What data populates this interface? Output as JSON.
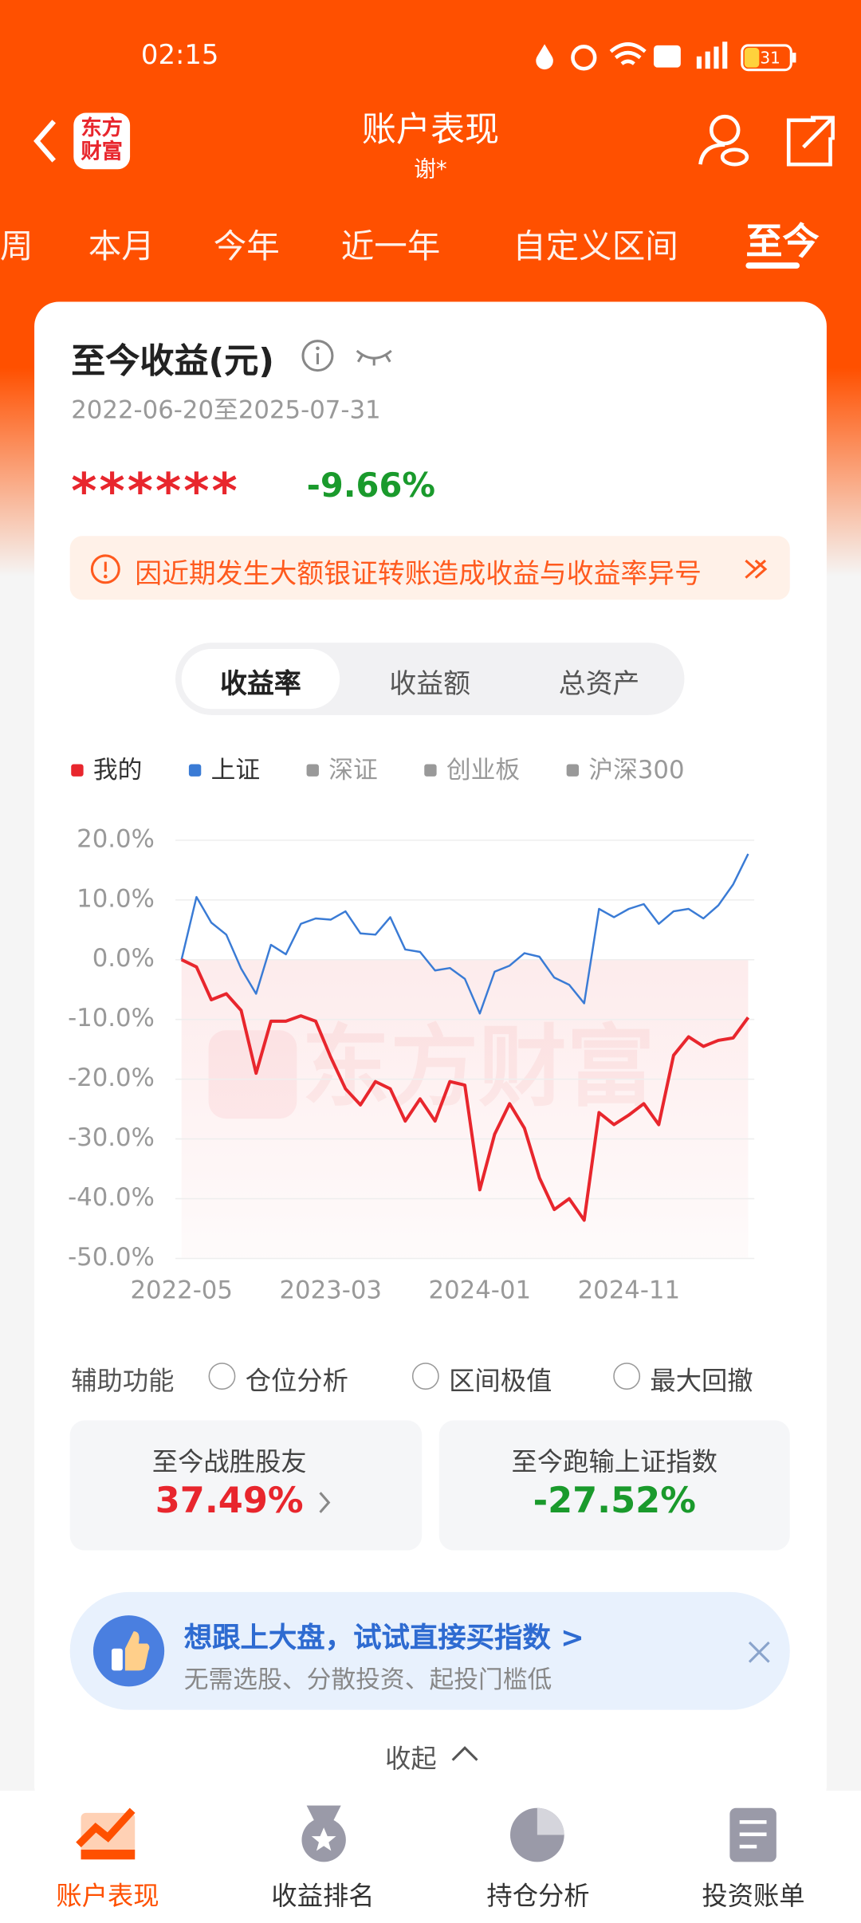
{
  "status_bar": {
    "time": "02:15",
    "battery": "31"
  },
  "nav": {
    "logo": "东方财富",
    "title": "账户表现",
    "subtitle": "谢*"
  },
  "tabs": [
    "周",
    "本月",
    "今年",
    "近一年",
    "自定义区间",
    "至今"
  ],
  "card": {
    "title": "至今收益(元)",
    "date_range": "2022-06-20至2025-07-31",
    "masked_amount": "******",
    "return_pct": "-9.66%",
    "notice": "因近期发生大额银证转账造成收益与收益率异号"
  },
  "segments": [
    "收益率",
    "收益额",
    "总资产"
  ],
  "chart_data": {
    "type": "line",
    "categories": [
      "2022-05",
      null,
      null,
      null,
      null,
      null,
      null,
      null,
      null,
      null,
      "2023-03",
      null,
      null,
      null,
      null,
      null,
      null,
      null,
      null,
      null,
      "2024-01",
      null,
      null,
      null,
      null,
      null,
      null,
      null,
      null,
      null,
      "2024-11",
      null,
      null,
      null,
      null,
      null,
      null,
      null,
      null
    ],
    "series": [
      {
        "name": "我的",
        "color": "#e8262d",
        "values": [
          0,
          -1.2,
          -6.7,
          -5.7,
          -8.5,
          -19,
          -10.3,
          -10.3,
          -9.4,
          -10.3,
          -16.3,
          -21.6,
          -24.3,
          -20.4,
          -21.6,
          -27,
          -23.3,
          -27,
          -20.4,
          -21,
          -38.5,
          -29.2,
          -24.1,
          -28.2,
          -36.5,
          -41.8,
          -40,
          -43.6,
          -25.6,
          -27.6,
          -26,
          -24.1,
          -27.6,
          -16,
          -12.9,
          -14.5,
          -13.5,
          -13.1,
          -9.66
        ]
      },
      {
        "name": "上证",
        "color": "#3a7bd5",
        "values": [
          0,
          10.5,
          6.2,
          4.2,
          -1.5,
          -5.7,
          2.5,
          0.9,
          6,
          6.9,
          6.7,
          8.1,
          4.4,
          4.2,
          7.1,
          1.7,
          1.3,
          -1.8,
          -1.4,
          -3.2,
          -9,
          -2,
          -1,
          1.1,
          0.5,
          -3,
          -4.2,
          -7.3,
          8.5,
          7.1,
          8.5,
          9.3,
          6,
          8.1,
          8.5,
          6.9,
          9.1,
          12.6,
          17.7
        ]
      }
    ],
    "inactive_series": [
      {
        "name": "深证",
        "color": "#999999"
      },
      {
        "name": "创业板",
        "color": "#999999"
      },
      {
        "name": "沪深300",
        "color": "#999999"
      }
    ],
    "ylim": [
      -50,
      20
    ],
    "yticks": [
      {
        "value": 20,
        "label": "20.0%"
      },
      {
        "value": 10,
        "label": "10.0%"
      },
      {
        "value": 0,
        "label": "0.0%"
      },
      {
        "value": -10,
        "label": "-10.0%"
      },
      {
        "value": -20,
        "label": "-20.0%"
      },
      {
        "value": -30,
        "label": "-30.0%"
      },
      {
        "value": -40,
        "label": "-40.0%"
      },
      {
        "value": -50,
        "label": "-50.0%"
      }
    ],
    "grid": true,
    "watermark": "东方财富"
  },
  "aux": {
    "label": "辅助功能",
    "options": [
      "仓位分析",
      "区间极值",
      "最大回撤"
    ]
  },
  "stats": [
    {
      "label": "至今战胜股友",
      "value": "37.49%"
    },
    {
      "label": "至今跑输上证指数",
      "value": "-27.52%"
    }
  ],
  "banner": {
    "title": "想跟上大盘，试试直接买指数 >",
    "subtitle": "无需选股、分散投资、起投门槛低"
  },
  "collapse": "收起",
  "bottom_nav": [
    "账户表现",
    "收益排名",
    "持仓分析",
    "投资账单"
  ]
}
